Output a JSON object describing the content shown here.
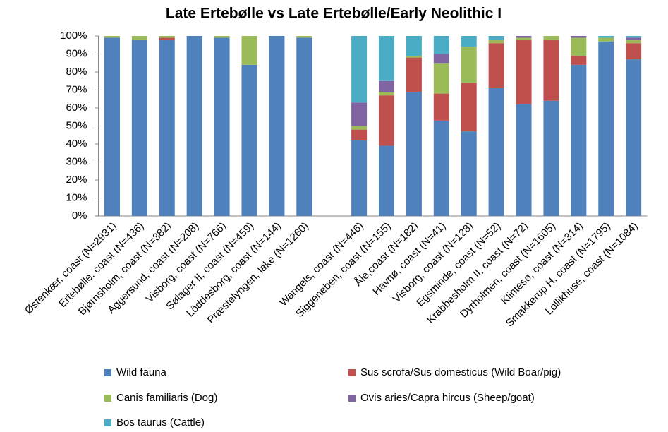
{
  "chart_data": {
    "type": "stacked_bar",
    "title": "Late Ertebølle vs Late Ertebølle/Early Neolithic I",
    "categories": [
      "Østenkær, coast (N=2931)",
      "Ertebølle, coast (N=436)",
      "Bjørnsholm, coast (N=382)",
      "Aggersund, coast (N=208)",
      "Visborg, coast (N=766)",
      "Sølager II, coast (N=459)",
      "Löddesborg, coast (N=144)",
      "Præstelyngen, lake (N=1260)",
      null,
      "Wangels, coast (N=446)",
      "Siggeneben, coast (N=155)",
      "Åle,coast (N=182)",
      "Havnø, coast (N=41)",
      "Visborg, coast (N=128)",
      "Egsminde, coast (N=52)",
      "Krabbesholm II, coast (N=72)",
      "Dyrholmen, coast (N=1605)",
      "Klintesø, coast (N=314)",
      "Smakkerup H. coast (N=1795)",
      "Lollikhuse, coast (N=1084)"
    ],
    "series": [
      {
        "name": "Wild fauna",
        "color": "#4f81bd",
        "values": [
          99,
          98,
          98,
          100,
          99,
          84,
          100,
          99,
          null,
          42,
          39,
          69,
          53,
          47,
          71,
          62,
          64,
          84,
          97,
          87
        ]
      },
      {
        "name": "Sus scrofa/Sus domesticus (Wild Boar/pig)",
        "color": "#c0504d",
        "values": [
          0,
          0,
          1,
          0,
          0,
          0,
          0,
          0,
          null,
          6,
          28,
          19,
          15,
          27,
          25,
          36,
          34,
          5,
          0,
          9
        ]
      },
      {
        "name": "Canis familiaris (Dog)",
        "color": "#9bbb59",
        "values": [
          1,
          2,
          1,
          0,
          1,
          16,
          0,
          1,
          null,
          2,
          2,
          1,
          17,
          20,
          2,
          1,
          2,
          10,
          2,
          2
        ]
      },
      {
        "name": "Ovis aries/Capra hircus (Sheep/goat)",
        "color": "#8064a2",
        "values": [
          0,
          0,
          0,
          0,
          0,
          0,
          0,
          0,
          null,
          13,
          6,
          0,
          5,
          0,
          0,
          1,
          0,
          1,
          0,
          1
        ]
      },
      {
        "name": "Bos taurus (Cattle)",
        "color": "#4bacc6",
        "values": [
          0,
          0,
          0,
          0,
          0,
          0,
          0,
          0,
          null,
          37,
          25,
          11,
          10,
          6,
          2,
          0,
          0,
          0,
          1,
          1
        ]
      }
    ],
    "ylim": [
      0,
      100
    ],
    "yticks": [
      {
        "value": 0,
        "label": "0%"
      },
      {
        "value": 10,
        "label": "10%"
      },
      {
        "value": 20,
        "label": "20%"
      },
      {
        "value": 30,
        "label": "30%"
      },
      {
        "value": 40,
        "label": "40%"
      },
      {
        "value": 50,
        "label": "50%"
      },
      {
        "value": 60,
        "label": "60%"
      },
      {
        "value": 70,
        "label": "70%"
      },
      {
        "value": 80,
        "label": "80%"
      },
      {
        "value": 90,
        "label": "90%"
      },
      {
        "value": 100,
        "label": "100%"
      }
    ],
    "grid": false,
    "legend": "bottom"
  }
}
